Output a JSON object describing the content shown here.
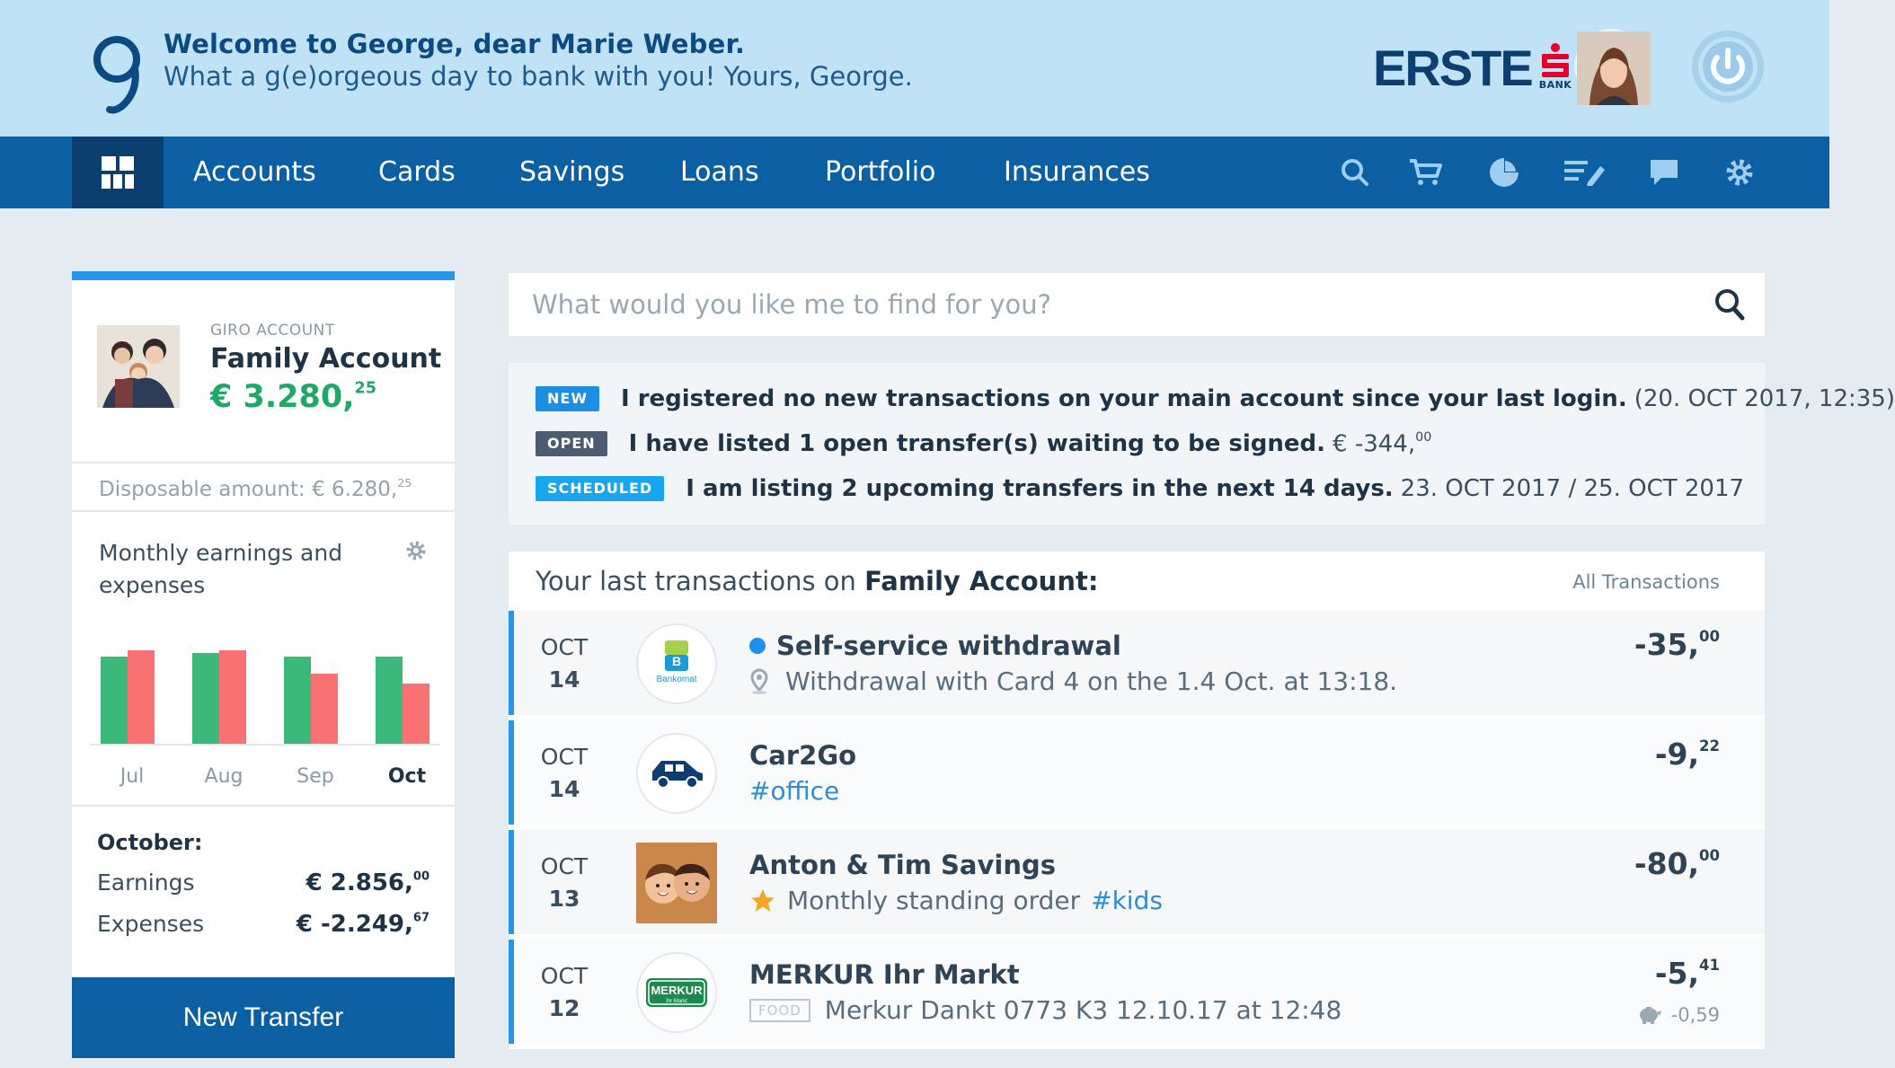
{
  "header": {
    "welcome": "Welcome to George, dear Marie Weber.",
    "tagline": "What a g(e)orgeous day to bank with you! Yours, George.",
    "bank_logo_text": "ERSTE",
    "bank_logo_sub": "BANK",
    "user_name": "Marie Weber"
  },
  "nav": {
    "items": [
      "Accounts",
      "Cards",
      "Savings",
      "Loans",
      "Portfolio",
      "Insurances"
    ],
    "icons": [
      "search-icon",
      "cart-icon",
      "pie-chart-icon",
      "edit-list-icon",
      "chat-icon",
      "gear-icon"
    ]
  },
  "account": {
    "type": "GIRO ACCOUNT",
    "name": "Family Account",
    "balance_main": "€ 3.280,",
    "balance_cents": "25",
    "disposable_label": "Disposable amount: € 6.280,",
    "disposable_cents": "25",
    "monthly_title": "Monthly earnings and expenses",
    "chart_data": {
      "type": "bar",
      "categories": [
        "Jul",
        "Aug",
        "Sep",
        "Oct"
      ],
      "series": [
        {
          "values": [
            0.93,
            0.97,
            0.93,
            0.93
          ],
          "color": "#3bb97a"
        },
        {
          "values": [
            1.0,
            1.0,
            0.75,
            0.64
          ],
          "color": "#f97272"
        }
      ],
      "active": "Oct"
    },
    "summary_title": "October:",
    "earnings_label": "Earnings",
    "earnings_main": "€ 2.856,",
    "earnings_cents": "00",
    "expenses_label": "Expenses",
    "expenses_main": "€ -2.249,",
    "expenses_cents": "67",
    "new_transfer": "New Transfer"
  },
  "search": {
    "placeholder": "What would you like me to find for you?"
  },
  "notices": [
    {
      "badge": "NEW",
      "color": "#1d8fe3",
      "strong": "I registered no new transactions on your main account since your last login.",
      "light": "(20. OCT 2017, 12:35)"
    },
    {
      "badge": "OPEN",
      "color": "#4a5c6e",
      "strong": "I have listed 1 open transfer(s) waiting to be signed.",
      "light": "€ -344,",
      "light_sup": "00"
    },
    {
      "badge": "SCHEDULED",
      "color": "#1aa6ef",
      "strong": "I am listing 2 upcoming transfers in the next 14 days.",
      "light": "23. OCT 2017 / 25. OCT 2017"
    }
  ],
  "transactions": {
    "heading_prefix": "Your last transactions on",
    "heading_account": "Family Account:",
    "all_link": "All Transactions",
    "rows": [
      {
        "month": "OCT",
        "day": "14",
        "title": "Self-service withdrawal",
        "sub": "Withdrawal with Card 4 on the 1.4 Oct. at 13:18.",
        "amount": "-35,",
        "cents": "00",
        "logo_text": "Bankomat"
      },
      {
        "month": "OCT",
        "day": "14",
        "title": "Car2Go",
        "tag": "#office",
        "amount": "-9,",
        "cents": "22"
      },
      {
        "month": "OCT",
        "day": "13",
        "title": "Anton & Tim Savings",
        "sub": "Monthly standing order",
        "tag": "#kids",
        "amount": "-80,",
        "cents": "00"
      },
      {
        "month": "OCT",
        "day": "12",
        "title": "MERKUR Ihr Markt",
        "label": "FOOD",
        "sub": "Merkur Dankt 0773 K3 12.10.17 at 12:48",
        "amount": "-5,",
        "cents": "41",
        "savings": "-0,59",
        "logo_text": "MERKUR",
        "logo_sub": "Ihr Markt"
      }
    ]
  }
}
